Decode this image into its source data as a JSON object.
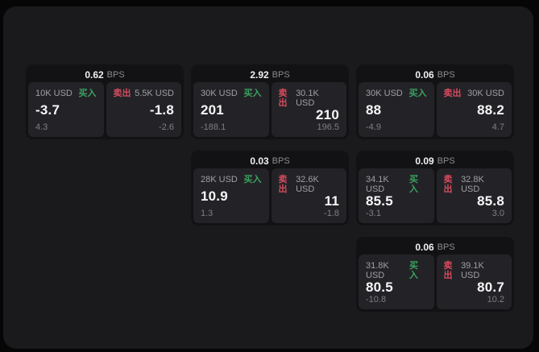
{
  "labels": {
    "bps": "BPS",
    "buy": "买入",
    "sell": "卖出"
  },
  "colors": {
    "buy_green": "#3ba25f",
    "sell_red": "#d74b5e",
    "panel_bg": "#1a1a1c",
    "card_bg": "#121214",
    "pane_bg": "#232327"
  },
  "cards": [
    {
      "bps": "0.62",
      "buy": {
        "amount": "10K USD",
        "value": "-3.7",
        "sub": "4.3"
      },
      "sell": {
        "amount": "5.5K USD",
        "value": "-1.8",
        "sub": "-2.6"
      }
    },
    {
      "bps": "2.92",
      "buy": {
        "amount": "30K USD",
        "value": "201",
        "sub": "-188.1"
      },
      "sell": {
        "amount": "30.1K USD",
        "value": "210",
        "sub": "196.5"
      }
    },
    {
      "bps": "0.06",
      "buy": {
        "amount": "30K USD",
        "value": "88",
        "sub": "-4.9"
      },
      "sell": {
        "amount": "30K USD",
        "value": "88.2",
        "sub": "4.7"
      }
    },
    {
      "bps": "0.03",
      "buy": {
        "amount": "28K USD",
        "value": "10.9",
        "sub": "1.3"
      },
      "sell": {
        "amount": "32.6K USD",
        "value": "11",
        "sub": "-1.8"
      }
    },
    {
      "bps": "0.09",
      "buy": {
        "amount": "34.1K USD",
        "value": "85.5",
        "sub": "-3.1"
      },
      "sell": {
        "amount": "32.8K USD",
        "value": "85.8",
        "sub": "3.0"
      }
    },
    {
      "bps": "0.06",
      "buy": {
        "amount": "31.8K USD",
        "value": "80.5",
        "sub": "-10.8"
      },
      "sell": {
        "amount": "39.1K USD",
        "value": "80.7",
        "sub": "10.2"
      }
    }
  ]
}
